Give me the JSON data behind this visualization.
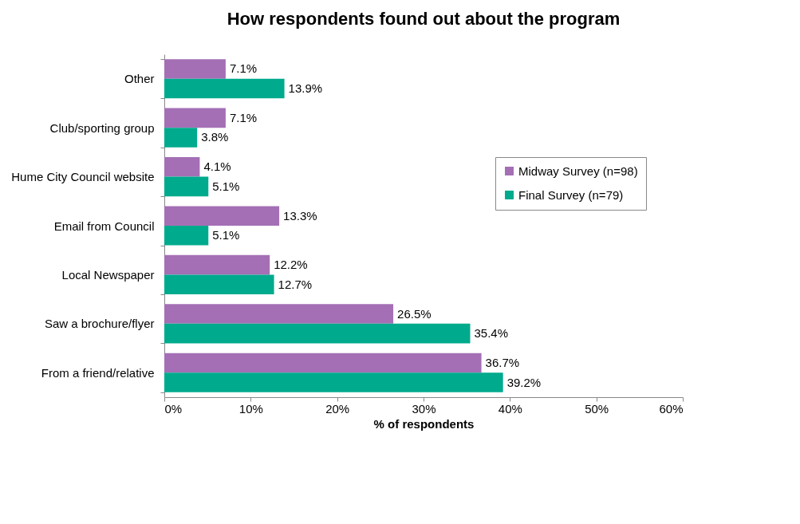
{
  "chart_data": {
    "type": "bar",
    "orientation": "horizontal",
    "title": "How respondents found out about the program",
    "xlabel": "% of respondents",
    "categories": [
      "Other",
      "Club/sporting group",
      "Hume City Council website",
      "Email from Council",
      "Local Newspaper",
      "Saw a brochure/flyer",
      "From a friend/relative"
    ],
    "series": [
      {
        "name": "Midway Survey (n=98)",
        "color": "#a46fb5",
        "values": [
          7.1,
          7.1,
          4.1,
          13.3,
          12.2,
          26.5,
          36.7
        ],
        "value_labels": [
          "7.1%",
          "7.1%",
          "4.1%",
          "13.3%",
          "12.2%",
          "26.5%",
          "36.7%"
        ]
      },
      {
        "name": "Final Survey (n=79)",
        "color": "#00aa8d",
        "values": [
          13.9,
          3.8,
          5.1,
          5.1,
          12.7,
          35.4,
          39.2
        ],
        "value_labels": [
          "13.9%",
          "3.8%",
          "5.1%",
          "5.1%",
          "12.7%",
          "35.4%",
          "39.2%"
        ]
      }
    ],
    "xlim": [
      0,
      60
    ],
    "xticks": [
      {
        "value": 0,
        "label": "0%"
      },
      {
        "value": 10,
        "label": "10%"
      },
      {
        "value": 20,
        "label": "20%"
      },
      {
        "value": 30,
        "label": "30%"
      },
      {
        "value": 40,
        "label": "40%"
      },
      {
        "value": 50,
        "label": "50%"
      },
      {
        "value": 60,
        "label": "60%"
      }
    ],
    "grid": false,
    "legend": "right"
  }
}
